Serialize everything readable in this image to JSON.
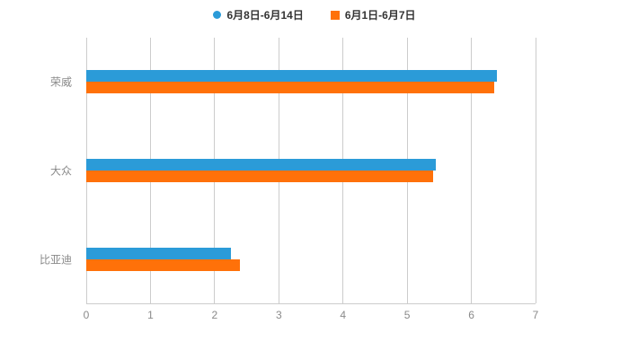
{
  "chart_data": {
    "type": "bar",
    "orientation": "horizontal",
    "title": "",
    "xlabel": "",
    "ylabel": "",
    "categories": [
      "荣威",
      "大众",
      "比亚迪"
    ],
    "series": [
      {
        "name": "6月8日-6月14日",
        "color": "#2B9BD8",
        "marker": "circle",
        "values": [
          6.4,
          5.45,
          2.25
        ]
      },
      {
        "name": "6月1日-6月7日",
        "color": "#FF7109",
        "marker": "square",
        "values": [
          6.35,
          5.4,
          2.4
        ]
      }
    ],
    "xlim": [
      0,
      7
    ],
    "x_ticks": [
      0,
      1,
      2,
      3,
      4,
      5,
      6,
      7
    ],
    "grid": "vertical",
    "legend_position": "top"
  },
  "colors": {
    "grid": "#cccccc",
    "axis_line": "#cccccc",
    "axis_text": "#8a8a8a",
    "legend_text": "#333333",
    "background": "#ffffff"
  }
}
